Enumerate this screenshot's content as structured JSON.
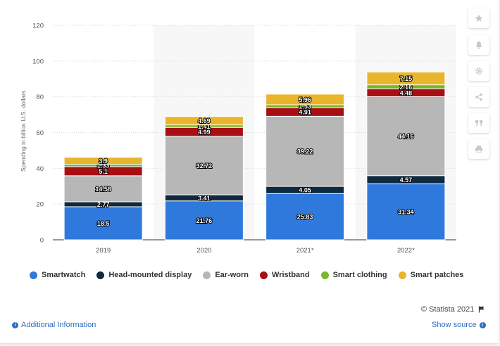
{
  "chart_data": {
    "type": "bar",
    "stacked": true,
    "categories": [
      "2019",
      "2020",
      "2021*",
      "2022*"
    ],
    "series": [
      {
        "name": "Smartwatch",
        "color": "#2f78dc",
        "values": [
          18.5,
          21.76,
          25.83,
          31.34
        ]
      },
      {
        "name": "Head-mounted display",
        "color": "#0f2a40",
        "values": [
          2.77,
          3.41,
          4.05,
          4.57
        ]
      },
      {
        "name": "Ear-worn",
        "color": "#b7b7b7",
        "values": [
          14.58,
          32.72,
          39.22,
          44.16
        ]
      },
      {
        "name": "Wristband",
        "color": "#a70f14",
        "values": [
          5.1,
          4.99,
          4.91,
          4.48
        ]
      },
      {
        "name": "Smart clothing",
        "color": "#79b829",
        "values": [
          1.33,
          1.41,
          1.53,
          2.16
        ]
      },
      {
        "name": "Smart patches",
        "color": "#e9b52d",
        "values": [
          3.9,
          4.69,
          5.96,
          7.15
        ]
      }
    ],
    "ylabel": "Spending in billion U.S. dollars",
    "xlabel": "",
    "ylim": [
      0,
      120
    ],
    "yticks": [
      0,
      20,
      40,
      60,
      80,
      100,
      120
    ],
    "grid": true,
    "legend_position": "bottom"
  },
  "footer": {
    "copyright": "© Statista 2021",
    "additional_info": "Additional Information",
    "show_source": "Show source"
  },
  "sidebar": {
    "buttons": [
      "star-icon",
      "bell-icon",
      "gear-icon",
      "share-icon",
      "quote-icon",
      "print-icon"
    ]
  }
}
